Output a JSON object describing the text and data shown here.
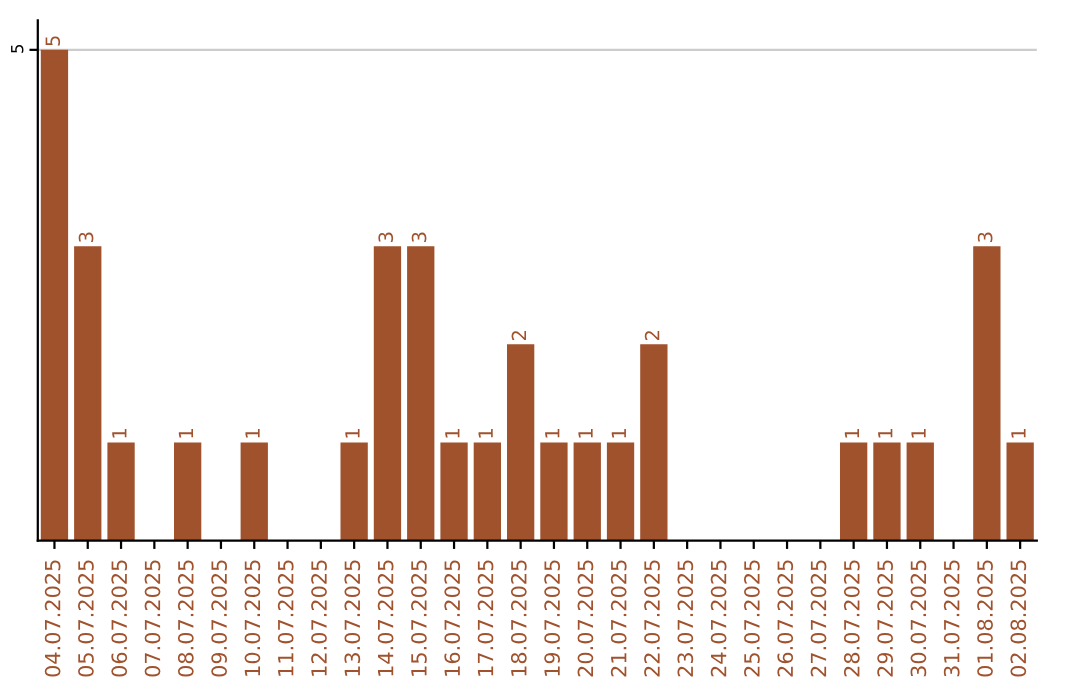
{
  "chart_data": {
    "type": "bar",
    "categories": [
      "04.07.2025",
      "05.07.2025",
      "06.07.2025",
      "07.07.2025",
      "08.07.2025",
      "09.07.2025",
      "10.07.2025",
      "11.07.2025",
      "12.07.2025",
      "13.07.2025",
      "14.07.2025",
      "15.07.2025",
      "16.07.2025",
      "17.07.2025",
      "18.07.2025",
      "19.07.2025",
      "20.07.2025",
      "21.07.2025",
      "22.07.2025",
      "23.07.2025",
      "24.07.2025",
      "25.07.2025",
      "26.07.2025",
      "27.07.2025",
      "28.07.2025",
      "29.07.2025",
      "30.07.2025",
      "31.07.2025",
      "01.08.2025",
      "02.08.2025"
    ],
    "values": [
      5,
      3,
      1,
      0,
      1,
      0,
      1,
      0,
      0,
      1,
      3,
      3,
      1,
      1,
      2,
      1,
      1,
      1,
      2,
      0,
      0,
      0,
      0,
      0,
      1,
      1,
      1,
      0,
      3,
      1
    ],
    "value_labels": [
      "5",
      "3",
      "1",
      null,
      "1",
      null,
      "1",
      null,
      null,
      "1",
      "3",
      "3",
      "1",
      "1",
      "2",
      "1",
      "1",
      "1",
      "2",
      null,
      null,
      null,
      null,
      null,
      "1",
      "1",
      "1",
      null,
      "3",
      "1"
    ],
    "color": "#a0522d",
    "ylim": [
      0,
      5.3
    ],
    "yticks": [
      5
    ],
    "grid": "y"
  }
}
